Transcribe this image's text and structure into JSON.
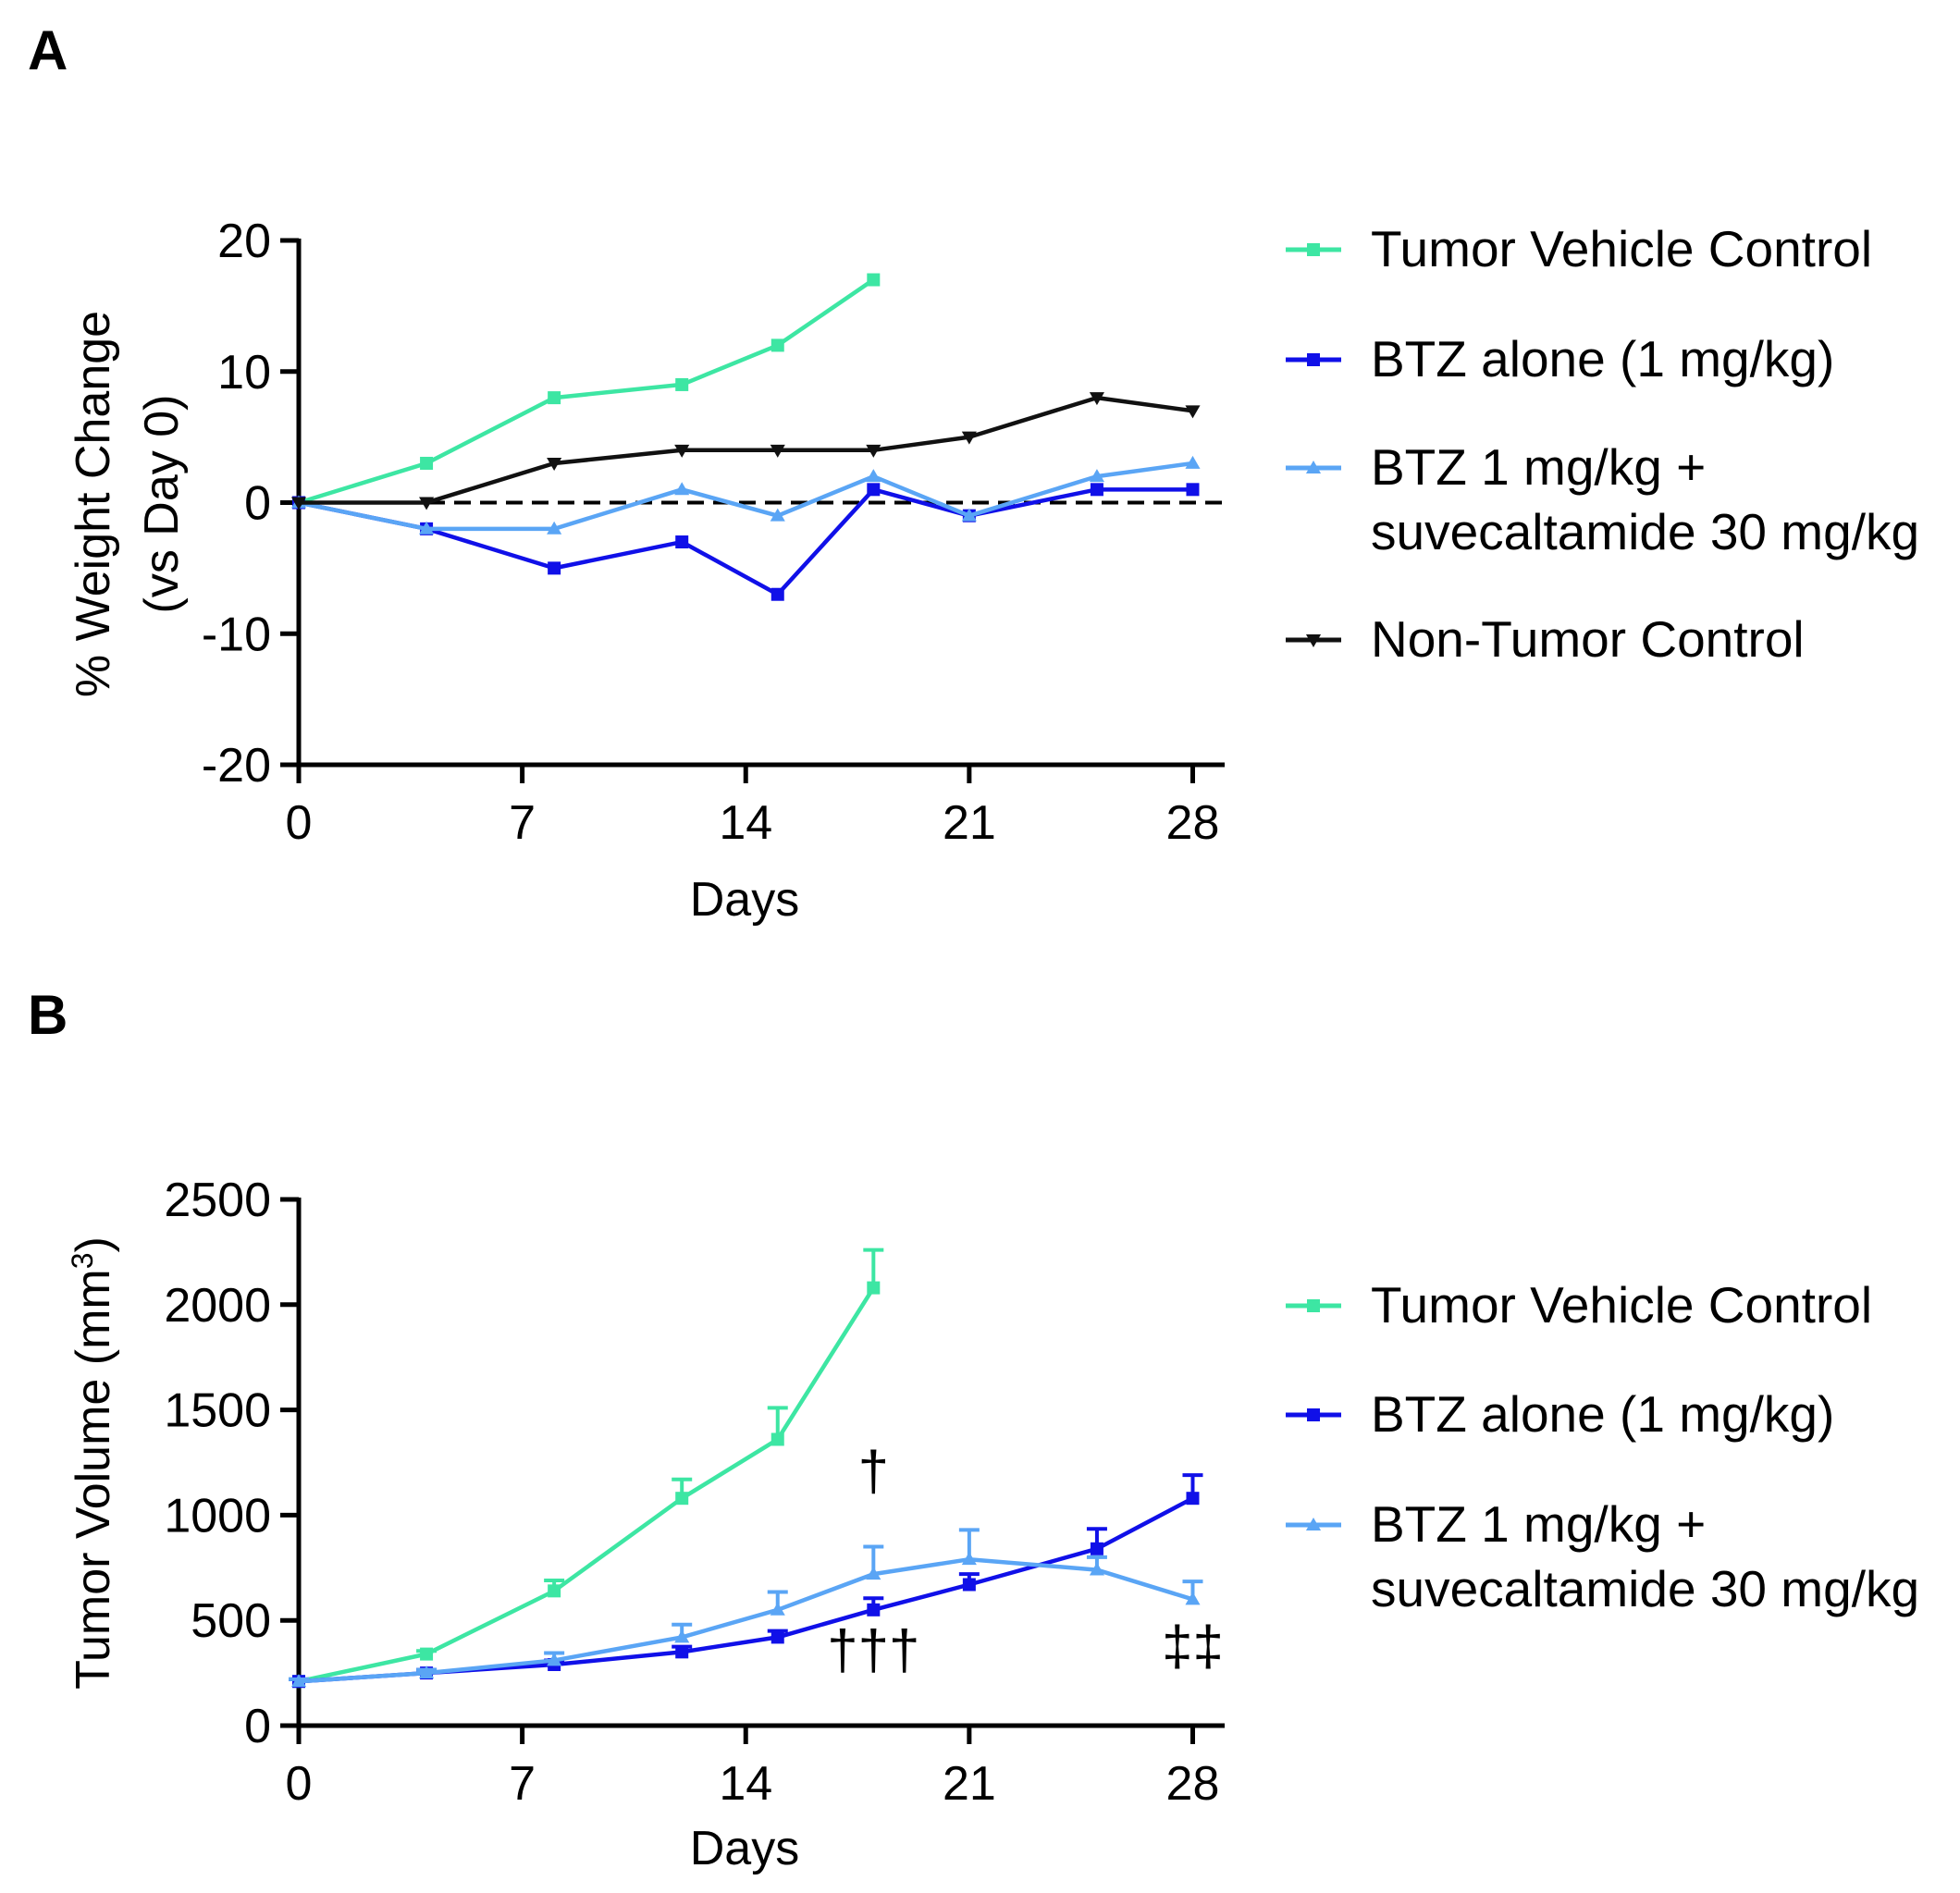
{
  "panels": {
    "a": {
      "letter": "A",
      "ylabel_line1": "% Weight Change",
      "ylabel_line2": "(vs Day 0)",
      "xlabel": "Days"
    },
    "b": {
      "letter": "B",
      "ylabel": "Tumor Volume (mm",
      "ylabel_sup": "3",
      "ylabel_end": ")",
      "xlabel": "Days"
    }
  },
  "colors": {
    "tumor_vehicle": "#3de6a3",
    "btz_alone": "#1010e8",
    "btz_combo": "#5aa5f5",
    "non_tumor": "#111111"
  },
  "chart_data": [
    {
      "id": "weight",
      "type": "line",
      "xlabel": "Days",
      "ylabel": "% Weight Change (vs Day 0)",
      "xlim": [
        0,
        29
      ],
      "ylim": [
        -20,
        20
      ],
      "xticks": [
        0,
        7,
        14,
        21,
        28
      ],
      "yticks": [
        -20,
        -10,
        0,
        10,
        20
      ],
      "reference_line": {
        "y": 0,
        "style": "dashed"
      },
      "legend_position": "right",
      "series": [
        {
          "key": "tumor_vehicle",
          "name": "Tumor Vehicle Control",
          "legend": [
            "Tumor Vehicle Control"
          ],
          "marker": "square",
          "x": [
            0,
            4,
            8,
            12,
            15,
            18
          ],
          "y": [
            0,
            3,
            8,
            9,
            12,
            17
          ]
        },
        {
          "key": "btz_alone",
          "name": "BTZ alone (1 mg/kg)",
          "legend": [
            "BTZ alone (1 mg/kg)"
          ],
          "marker": "square",
          "x": [
            0,
            4,
            8,
            12,
            15,
            18,
            21,
            25,
            28
          ],
          "y": [
            0,
            -2,
            -5,
            -3,
            -7,
            1,
            -1,
            1,
            1
          ]
        },
        {
          "key": "btz_combo",
          "name": "BTZ 1 mg/kg + suvecaltamide 30 mg/kg",
          "legend": [
            "BTZ 1 mg/kg +",
            "suvecaltamide 30 mg/kg"
          ],
          "marker": "triangle-up",
          "x": [
            0,
            4,
            8,
            12,
            15,
            18,
            21,
            25,
            28
          ],
          "y": [
            0,
            -2,
            -2,
            1,
            -1,
            2,
            -1,
            2,
            3
          ]
        },
        {
          "key": "non_tumor",
          "name": "Non-Tumor Control",
          "legend": [
            "Non-Tumor Control"
          ],
          "marker": "triangle-down",
          "x": [
            0,
            4,
            8,
            12,
            15,
            18,
            21,
            25,
            28
          ],
          "y": [
            0,
            0,
            3,
            4,
            4,
            4,
            5,
            8,
            7
          ]
        }
      ]
    },
    {
      "id": "volume",
      "type": "line",
      "xlabel": "Days",
      "ylabel": "Tumor Volume (mm³)",
      "xlim": [
        0,
        29
      ],
      "ylim": [
        0,
        2500
      ],
      "xticks": [
        0,
        7,
        14,
        21,
        28
      ],
      "yticks": [
        0,
        500,
        1000,
        1500,
        2000,
        2500
      ],
      "legend_position": "right",
      "series": [
        {
          "key": "tumor_vehicle",
          "name": "Tumor Vehicle Control",
          "legend": [
            "Tumor Vehicle Control"
          ],
          "marker": "square",
          "x": [
            0,
            4,
            8,
            12,
            15,
            18
          ],
          "y": [
            210,
            340,
            640,
            1080,
            1360,
            2080
          ],
          "err": [
            10,
            15,
            50,
            90,
            150,
            180
          ]
        },
        {
          "key": "btz_alone",
          "name": "BTZ alone (1 mg/kg)",
          "legend": [
            "BTZ alone (1 mg/kg)"
          ],
          "marker": "square",
          "x": [
            0,
            4,
            8,
            12,
            15,
            18,
            21,
            25,
            28
          ],
          "y": [
            210,
            250,
            290,
            350,
            420,
            550,
            670,
            840,
            1080
          ],
          "err": [
            10,
            15,
            20,
            25,
            30,
            55,
            50,
            95,
            110
          ]
        },
        {
          "key": "btz_combo",
          "name": "BTZ 1 mg/kg + suvecaltamide 30 mg/kg",
          "legend": [
            "BTZ 1 mg/kg +",
            "suvecaltamide 30 mg/kg"
          ],
          "marker": "triangle-up",
          "x": [
            0,
            4,
            8,
            12,
            15,
            18,
            21,
            25,
            28
          ],
          "y": [
            210,
            250,
            310,
            420,
            550,
            720,
            790,
            740,
            600
          ],
          "err": [
            10,
            15,
            35,
            60,
            85,
            130,
            140,
            60,
            85
          ]
        }
      ],
      "annotations": [
        {
          "text": "†",
          "x": 18,
          "y": 1120
        },
        {
          "text": "†††",
          "x": 18,
          "y": 270
        },
        {
          "text": "‡‡",
          "x": 28,
          "y": 290
        }
      ]
    }
  ]
}
